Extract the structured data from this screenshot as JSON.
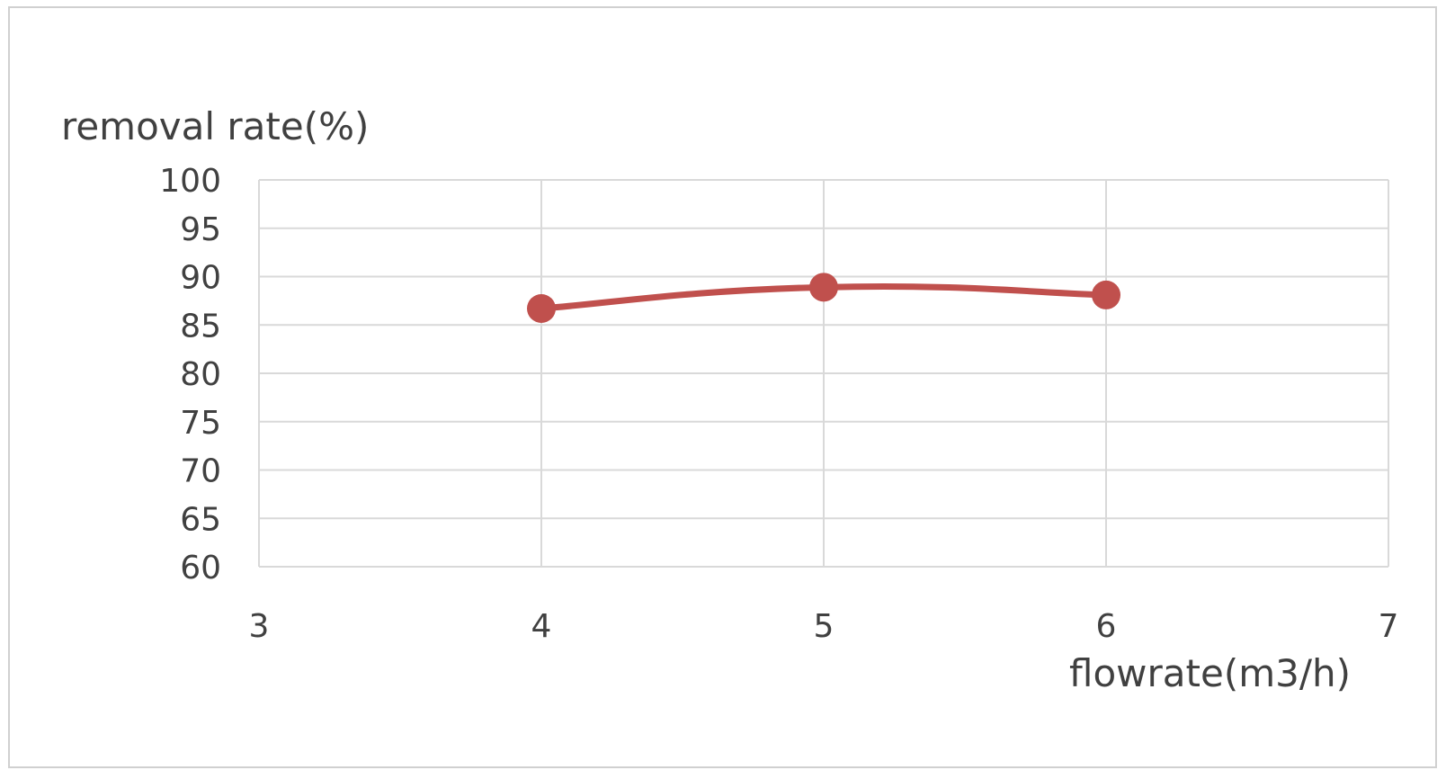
{
  "chart_data": {
    "type": "scatter",
    "title": "",
    "xlabel": "flowrate(m3/h)",
    "ylabel": "removal rate(%)",
    "xlim": [
      3,
      7
    ],
    "ylim": [
      60,
      100
    ],
    "x_ticks": [
      3,
      4,
      5,
      6,
      7
    ],
    "y_ticks": [
      60,
      65,
      70,
      75,
      80,
      85,
      90,
      95,
      100
    ],
    "grid": true,
    "smooth": true,
    "series": [
      {
        "x": [
          4,
          5,
          6
        ],
        "y": [
          86.7,
          88.9,
          88.1
        ],
        "color": "#c0504d"
      }
    ]
  }
}
